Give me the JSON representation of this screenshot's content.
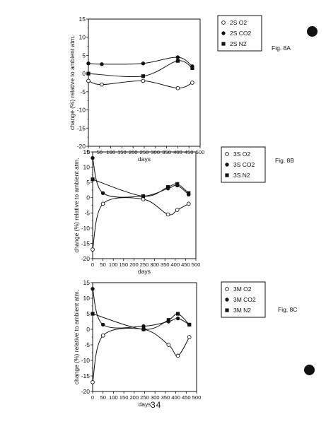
{
  "page_number": "34",
  "chart_data": [
    {
      "type": "line",
      "figure_label": "Fig. 8A",
      "xlabel": "days",
      "ylabel": "change (%) relative to ambient atm.",
      "xlim": [
        0,
        500
      ],
      "ylim": [
        -20,
        15
      ],
      "x_ticks": [
        0,
        50,
        100,
        150,
        200,
        250,
        300,
        350,
        400,
        450,
        500
      ],
      "y_ticks": [
        -20,
        -15,
        -10,
        -5,
        0,
        5,
        10,
        15
      ],
      "grid": false,
      "legend_position": "right",
      "series": [
        {
          "name": "2S O2",
          "marker": "open-circle",
          "x": [
            0,
            60,
            245,
            400,
            465
          ],
          "y": [
            -2,
            -3,
            -2,
            -4,
            -2.5
          ]
        },
        {
          "name": "2S CO2",
          "marker": "filled-circle",
          "x": [
            0,
            60,
            245,
            400,
            465
          ],
          "y": [
            2.8,
            2.6,
            2.8,
            4.5,
            2
          ]
        },
        {
          "name": "2S N2",
          "marker": "filled-square",
          "x": [
            0,
            245,
            400,
            465
          ],
          "y": [
            0,
            -0.7,
            3.5,
            1.5
          ]
        }
      ]
    },
    {
      "type": "line",
      "figure_label": "Fig. 8B",
      "xlabel": "days",
      "ylabel": "change (%) relative to ambient atm.",
      "xlim": [
        0,
        500
      ],
      "ylim": [
        -20,
        15
      ],
      "x_ticks": [
        0,
        50,
        100,
        150,
        200,
        250,
        300,
        350,
        400,
        450,
        500
      ],
      "y_ticks": [
        -20,
        -15,
        -10,
        -5,
        0,
        5,
        10,
        15
      ],
      "grid": false,
      "legend_position": "right",
      "series": [
        {
          "name": "3S O2",
          "marker": "open-circle",
          "x": [
            0,
            50,
            245,
            365,
            410,
            465
          ],
          "y": [
            -17,
            -2,
            -0.5,
            -5.5,
            -4,
            -2
          ]
        },
        {
          "name": "3S CO2",
          "marker": "filled-circle",
          "x": [
            0,
            50,
            245,
            365,
            410,
            465
          ],
          "y": [
            13,
            1.5,
            0.5,
            3,
            4,
            1
          ]
        },
        {
          "name": "3S N2",
          "marker": "filled-square",
          "x": [
            0,
            245,
            365,
            410,
            465
          ],
          "y": [
            6,
            0.5,
            3.5,
            4.5,
            1.5
          ]
        }
      ]
    },
    {
      "type": "line",
      "figure_label": "Fig. 8C",
      "xlabel": "days",
      "ylabel": "change (%) relative to ambient atm.",
      "xlim": [
        0,
        500
      ],
      "ylim": [
        -20,
        15
      ],
      "x_ticks": [
        0,
        50,
        100,
        150,
        200,
        250,
        300,
        350,
        400,
        450,
        500
      ],
      "y_ticks": [
        -20,
        -15,
        -10,
        -5,
        0,
        5,
        10,
        15
      ],
      "grid": false,
      "legend_position": "right",
      "series": [
        {
          "name": "3M O2",
          "marker": "open-circle",
          "x": [
            0,
            50,
            245,
            365,
            410,
            465
          ],
          "y": [
            -17,
            -2,
            0,
            -5,
            -8.5,
            -2.5
          ]
        },
        {
          "name": "3M CO2",
          "marker": "filled-circle",
          "x": [
            0,
            50,
            245,
            365,
            410,
            465
          ],
          "y": [
            13,
            1.5,
            1,
            2.5,
            3.5,
            1.5
          ]
        },
        {
          "name": "3M N2",
          "marker": "filled-square",
          "x": [
            0,
            245,
            365,
            410,
            465
          ],
          "y": [
            5,
            0,
            3,
            5,
            1.5
          ]
        }
      ]
    }
  ]
}
